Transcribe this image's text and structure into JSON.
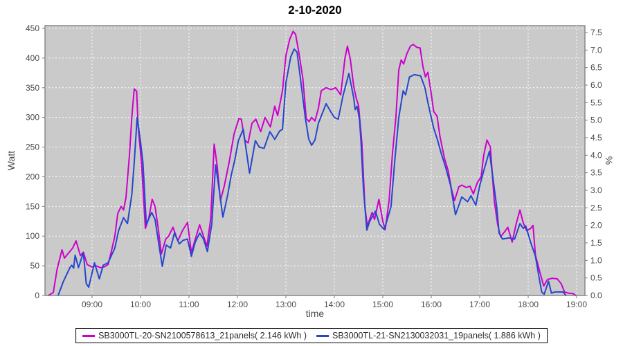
{
  "title": "2-10-2020",
  "axes": {
    "left": {
      "label": "Watt",
      "ticks": [
        0,
        50,
        100,
        150,
        200,
        250,
        300,
        350,
        400,
        450
      ]
    },
    "right": {
      "label": "%",
      "ticks": [
        "0.0",
        "0.5",
        "1.0",
        "1.5",
        "2.0",
        "2.5",
        "3.0",
        "3.5",
        "4.0",
        "4.5",
        "5.0",
        "5.5",
        "6.0",
        "6.5",
        "7.0",
        "7.5"
      ]
    },
    "bottom": {
      "label": "time",
      "ticks": [
        "09:00",
        "10:00",
        "11:00",
        "12:00",
        "13:00",
        "14:00",
        "15:00",
        "16:00",
        "17:00",
        "18:00",
        "19:00"
      ]
    }
  },
  "legend": [
    {
      "label": "SB3000TL-20-SN2100578613_21panels( 2.146 kWh )",
      "color": "#cc00cc"
    },
    {
      "label": "SB3000TL-21-SN2130032031_19panels( 1.886 kWh )",
      "color": "#2646cc"
    }
  ],
  "colors": {
    "plot_bg": "#cacaca",
    "gridline": "#ffffff",
    "plot_border": "#7a7a7a",
    "tick_text": "#4a4a4a",
    "series_magenta": "#cc00cc",
    "series_blue": "#2646cc"
  },
  "chart_data": {
    "type": "line",
    "title": "2-10-2020",
    "xlabel": "time",
    "ylabel_left": "Watt",
    "ylabel_right": "%",
    "x_range_hours": [
      8.03,
      19.17
    ],
    "watt_range": [
      0,
      455
    ],
    "pct_range": [
      0,
      7.5
    ],
    "grid": true,
    "legend_position": "bottom",
    "series": [
      {
        "name": "SB3000TL-20-SN2100578613_21panels( 2.146 kWh )",
        "color": "#cc00cc",
        "points": [
          [
            8.1,
            0
          ],
          [
            8.2,
            5
          ],
          [
            8.28,
            45
          ],
          [
            8.38,
            77
          ],
          [
            8.43,
            63
          ],
          [
            8.52,
            72
          ],
          [
            8.6,
            80
          ],
          [
            8.67,
            92
          ],
          [
            8.76,
            67
          ],
          [
            8.82,
            73
          ],
          [
            8.9,
            52
          ],
          [
            9.0,
            48
          ],
          [
            9.08,
            50
          ],
          [
            9.17,
            47
          ],
          [
            9.25,
            48
          ],
          [
            9.33,
            52
          ],
          [
            9.4,
            75
          ],
          [
            9.47,
            100
          ],
          [
            9.53,
            138
          ],
          [
            9.6,
            150
          ],
          [
            9.65,
            144
          ],
          [
            9.7,
            165
          ],
          [
            9.77,
            235
          ],
          [
            9.82,
            300
          ],
          [
            9.87,
            348
          ],
          [
            9.92,
            344
          ],
          [
            9.95,
            286
          ],
          [
            10.02,
            224
          ],
          [
            10.1,
            113
          ],
          [
            10.17,
            130
          ],
          [
            10.24,
            162
          ],
          [
            10.3,
            150
          ],
          [
            10.37,
            110
          ],
          [
            10.43,
            70
          ],
          [
            10.52,
            95
          ],
          [
            10.58,
            100
          ],
          [
            10.67,
            115
          ],
          [
            10.77,
            92
          ],
          [
            10.87,
            110
          ],
          [
            10.97,
            123
          ],
          [
            11.05,
            72
          ],
          [
            11.13,
            95
          ],
          [
            11.22,
            119
          ],
          [
            11.3,
            100
          ],
          [
            11.37,
            83
          ],
          [
            11.45,
            130
          ],
          [
            11.52,
            255
          ],
          [
            11.58,
            220
          ],
          [
            11.65,
            160
          ],
          [
            11.73,
            185
          ],
          [
            11.83,
            225
          ],
          [
            11.93,
            272
          ],
          [
            12.03,
            298
          ],
          [
            12.08,
            297
          ],
          [
            12.15,
            262
          ],
          [
            12.22,
            257
          ],
          [
            12.3,
            290
          ],
          [
            12.38,
            297
          ],
          [
            12.48,
            276
          ],
          [
            12.57,
            300
          ],
          [
            12.68,
            284
          ],
          [
            12.77,
            319
          ],
          [
            12.83,
            303
          ],
          [
            12.93,
            345
          ],
          [
            13.0,
            404
          ],
          [
            13.08,
            432
          ],
          [
            13.15,
            445
          ],
          [
            13.2,
            440
          ],
          [
            13.27,
            408
          ],
          [
            13.35,
            366
          ],
          [
            13.42,
            298
          ],
          [
            13.48,
            293
          ],
          [
            13.53,
            300
          ],
          [
            13.6,
            294
          ],
          [
            13.67,
            315
          ],
          [
            13.73,
            345
          ],
          [
            13.83,
            350
          ],
          [
            13.93,
            347
          ],
          [
            14.03,
            350
          ],
          [
            14.13,
            338
          ],
          [
            14.22,
            400
          ],
          [
            14.27,
            420
          ],
          [
            14.33,
            398
          ],
          [
            14.4,
            352
          ],
          [
            14.45,
            333
          ],
          [
            14.5,
            320
          ],
          [
            14.57,
            255
          ],
          [
            14.63,
            150
          ],
          [
            14.68,
            117
          ],
          [
            14.78,
            140
          ],
          [
            14.83,
            128
          ],
          [
            14.92,
            162
          ],
          [
            15.0,
            125
          ],
          [
            15.05,
            111
          ],
          [
            15.13,
            160
          ],
          [
            15.2,
            240
          ],
          [
            15.27,
            300
          ],
          [
            15.33,
            380
          ],
          [
            15.38,
            397
          ],
          [
            15.43,
            390
          ],
          [
            15.5,
            408
          ],
          [
            15.57,
            420
          ],
          [
            15.63,
            423
          ],
          [
            15.7,
            418
          ],
          [
            15.77,
            417
          ],
          [
            15.83,
            385
          ],
          [
            15.88,
            368
          ],
          [
            15.93,
            376
          ],
          [
            16.0,
            340
          ],
          [
            16.05,
            310
          ],
          [
            16.12,
            302
          ],
          [
            16.18,
            268
          ],
          [
            16.27,
            232
          ],
          [
            16.35,
            210
          ],
          [
            16.42,
            178
          ],
          [
            16.48,
            160
          ],
          [
            16.57,
            183
          ],
          [
            16.63,
            186
          ],
          [
            16.72,
            182
          ],
          [
            16.8,
            184
          ],
          [
            16.87,
            171
          ],
          [
            16.95,
            190
          ],
          [
            17.03,
            200
          ],
          [
            17.08,
            235
          ],
          [
            17.15,
            262
          ],
          [
            17.22,
            250
          ],
          [
            17.3,
            160
          ],
          [
            17.37,
            120
          ],
          [
            17.43,
            99
          ],
          [
            17.52,
            108
          ],
          [
            17.58,
            115
          ],
          [
            17.67,
            90
          ],
          [
            17.75,
            120
          ],
          [
            17.83,
            144
          ],
          [
            17.9,
            122
          ],
          [
            17.97,
            109
          ],
          [
            18.05,
            113
          ],
          [
            18.1,
            118
          ],
          [
            18.15,
            68
          ],
          [
            18.23,
            43
          ],
          [
            18.32,
            16
          ],
          [
            18.4,
            27
          ],
          [
            18.5,
            29
          ],
          [
            18.6,
            28
          ],
          [
            18.68,
            20
          ],
          [
            18.75,
            6
          ],
          [
            18.83,
            4
          ],
          [
            18.93,
            3
          ],
          [
            18.98,
            0
          ]
        ]
      },
      {
        "name": "SB3000TL-21-SN2130032031_19panels( 1.886 kWh )",
        "color": "#2646cc",
        "points": [
          [
            8.3,
            0
          ],
          [
            8.4,
            22
          ],
          [
            8.45,
            31
          ],
          [
            8.55,
            48
          ],
          [
            8.58,
            51
          ],
          [
            8.62,
            46
          ],
          [
            8.65,
            68
          ],
          [
            8.72,
            47
          ],
          [
            8.82,
            72
          ],
          [
            8.88,
            20
          ],
          [
            8.93,
            14
          ],
          [
            9.05,
            55
          ],
          [
            9.15,
            28
          ],
          [
            9.23,
            51
          ],
          [
            9.33,
            55
          ],
          [
            9.47,
            80
          ],
          [
            9.55,
            110
          ],
          [
            9.65,
            131
          ],
          [
            9.73,
            121
          ],
          [
            9.82,
            170
          ],
          [
            9.87,
            224
          ],
          [
            9.93,
            300
          ],
          [
            10.0,
            259
          ],
          [
            10.05,
            224
          ],
          [
            10.12,
            120
          ],
          [
            10.23,
            140
          ],
          [
            10.3,
            128
          ],
          [
            10.38,
            85
          ],
          [
            10.45,
            49
          ],
          [
            10.53,
            85
          ],
          [
            10.62,
            80
          ],
          [
            10.7,
            105
          ],
          [
            10.8,
            87
          ],
          [
            10.88,
            93
          ],
          [
            10.97,
            95
          ],
          [
            11.05,
            66
          ],
          [
            11.13,
            90
          ],
          [
            11.22,
            105
          ],
          [
            11.3,
            95
          ],
          [
            11.38,
            74
          ],
          [
            11.47,
            120
          ],
          [
            11.55,
            220
          ],
          [
            11.62,
            180
          ],
          [
            11.7,
            132
          ],
          [
            11.8,
            170
          ],
          [
            11.87,
            202
          ],
          [
            11.95,
            230
          ],
          [
            12.02,
            261
          ],
          [
            12.12,
            280
          ],
          [
            12.25,
            206
          ],
          [
            12.37,
            261
          ],
          [
            12.45,
            250
          ],
          [
            12.55,
            248
          ],
          [
            12.67,
            276
          ],
          [
            12.77,
            263
          ],
          [
            12.87,
            277
          ],
          [
            12.93,
            280
          ],
          [
            13.0,
            358
          ],
          [
            13.1,
            402
          ],
          [
            13.17,
            415
          ],
          [
            13.23,
            410
          ],
          [
            13.3,
            366
          ],
          [
            13.4,
            300
          ],
          [
            13.47,
            264
          ],
          [
            13.53,
            253
          ],
          [
            13.6,
            262
          ],
          [
            13.67,
            290
          ],
          [
            13.83,
            323
          ],
          [
            13.93,
            309
          ],
          [
            14.0,
            300
          ],
          [
            14.08,
            297
          ],
          [
            14.18,
            337
          ],
          [
            14.3,
            374
          ],
          [
            14.4,
            333
          ],
          [
            14.43,
            313
          ],
          [
            14.47,
            319
          ],
          [
            14.52,
            296
          ],
          [
            14.55,
            259
          ],
          [
            14.6,
            180
          ],
          [
            14.67,
            110
          ],
          [
            14.73,
            125
          ],
          [
            14.85,
            142
          ],
          [
            14.93,
            120
          ],
          [
            15.03,
            111
          ],
          [
            15.1,
            130
          ],
          [
            15.17,
            150
          ],
          [
            15.25,
            230
          ],
          [
            15.33,
            300
          ],
          [
            15.42,
            345
          ],
          [
            15.47,
            338
          ],
          [
            15.55,
            368
          ],
          [
            15.65,
            372
          ],
          [
            15.78,
            370
          ],
          [
            15.87,
            350
          ],
          [
            15.93,
            325
          ],
          [
            16.05,
            282
          ],
          [
            16.13,
            262
          ],
          [
            16.2,
            241
          ],
          [
            16.3,
            215
          ],
          [
            16.4,
            185
          ],
          [
            16.5,
            136
          ],
          [
            16.63,
            166
          ],
          [
            16.75,
            158
          ],
          [
            16.82,
            168
          ],
          [
            16.92,
            152
          ],
          [
            17.0,
            185
          ],
          [
            17.1,
            215
          ],
          [
            17.2,
            243
          ],
          [
            17.35,
            150
          ],
          [
            17.4,
            105
          ],
          [
            17.47,
            95
          ],
          [
            17.6,
            97
          ],
          [
            17.72,
            95
          ],
          [
            17.83,
            121
          ],
          [
            17.9,
            113
          ],
          [
            17.95,
            117
          ],
          [
            18.05,
            90
          ],
          [
            18.15,
            66
          ],
          [
            18.23,
            28
          ],
          [
            18.28,
            6
          ],
          [
            18.33,
            2
          ],
          [
            18.42,
            24
          ],
          [
            18.48,
            4
          ],
          [
            18.55,
            6
          ],
          [
            18.72,
            6
          ],
          [
            18.78,
            0
          ]
        ]
      }
    ]
  }
}
